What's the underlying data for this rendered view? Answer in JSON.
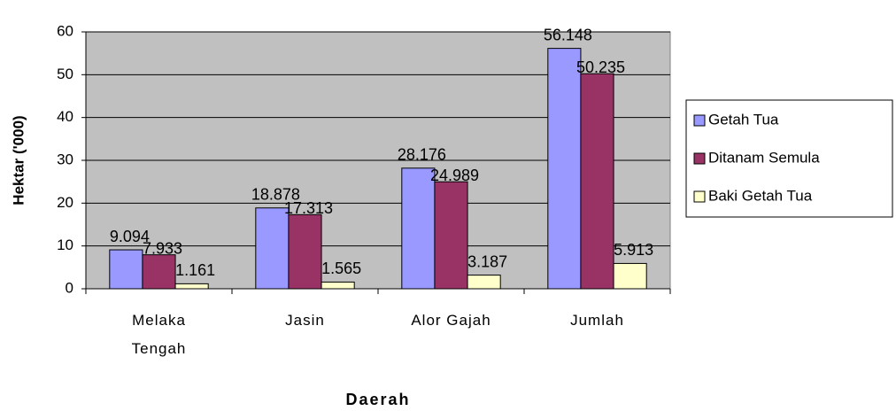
{
  "chart_data": {
    "type": "bar",
    "x_label": "Daerah",
    "y_label": "Hektar ('000)",
    "categories": [
      "Melaka Tengah",
      "Jasin",
      "Alor Gajah",
      "Jumlah"
    ],
    "series": [
      {
        "name": "Getah Tua",
        "color": "#9999ff",
        "values": [
          9.094,
          18.878,
          28.176,
          56.148
        ]
      },
      {
        "name": "Ditanam Semula",
        "color": "#993366",
        "values": [
          7.933,
          17.313,
          24.989,
          50.235
        ]
      },
      {
        "name": "Baki Getah Tua",
        "color": "#ffffcc",
        "values": [
          1.161,
          1.565,
          3.187,
          5.913
        ]
      }
    ],
    "ylim": [
      0,
      60
    ],
    "yticks": [
      0,
      10,
      20,
      30,
      40,
      50,
      60
    ],
    "grid": true,
    "plot_background": "#c0c0c0",
    "legend": "right"
  }
}
